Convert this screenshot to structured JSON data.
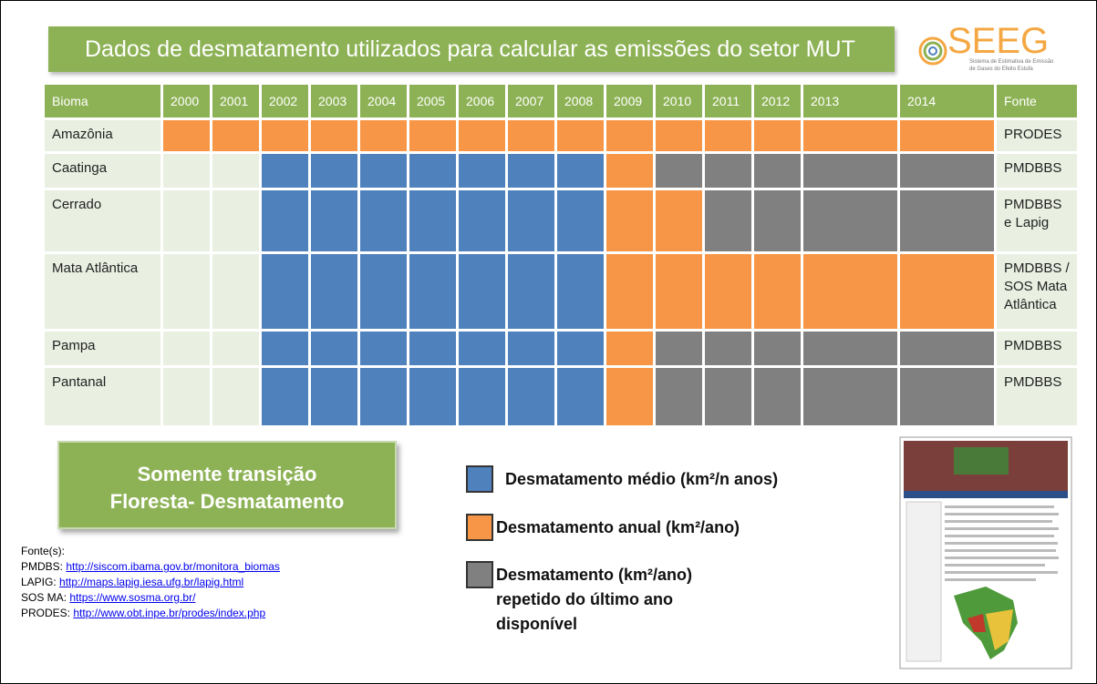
{
  "header": {
    "title": "Dados de desmatamento utilizados para calcular as emissões do setor MUT",
    "logo": "SEEG",
    "logo_subtitle": [
      "Sistema de Estimativa de Emissão",
      "de Gases do Efeito Estufa"
    ]
  },
  "table": {
    "header_color": "#8db255",
    "empty_color": "#e9efe1",
    "columns": [
      "Bioma",
      "2000",
      "2001",
      "2002",
      "2003",
      "2004",
      "2005",
      "2006",
      "2007",
      "2008",
      "2009",
      "2010",
      "2011",
      "2012",
      "2013",
      "2014",
      "Fonte"
    ],
    "rows": [
      {
        "bioma": "Amazônia",
        "cells": [
          1,
          1,
          1,
          1,
          1,
          1,
          1,
          1,
          1,
          1,
          1,
          1,
          1,
          1,
          1
        ],
        "fonte": "PRODES"
      },
      {
        "bioma": "Caatinga",
        "cells": [
          null,
          null,
          0,
          0,
          0,
          0,
          0,
          0,
          0,
          1,
          2,
          2,
          2,
          2,
          2
        ],
        "fonte": "PMDBBS"
      },
      {
        "bioma": "Cerrado",
        "cells": [
          null,
          null,
          0,
          0,
          0,
          0,
          0,
          0,
          0,
          1,
          1,
          2,
          2,
          2,
          2
        ],
        "fonte": "PMDBBS e Lapig"
      },
      {
        "bioma": "Mata Atlântica",
        "cells": [
          null,
          null,
          0,
          0,
          0,
          0,
          0,
          0,
          0,
          1,
          1,
          1,
          1,
          1,
          1
        ],
        "fonte": "PMDBBS / SOS Mata Atlântica"
      },
      {
        "bioma": "Pampa",
        "cells": [
          null,
          null,
          0,
          0,
          0,
          0,
          0,
          0,
          0,
          1,
          2,
          2,
          2,
          2,
          2
        ],
        "fonte": "PMDBBS"
      },
      {
        "bioma": "Pantanal",
        "cells": [
          null,
          null,
          0,
          0,
          0,
          0,
          0,
          0,
          0,
          1,
          2,
          2,
          2,
          2,
          2
        ],
        "fonte": "PMDBBS"
      }
    ]
  },
  "legend": [
    {
      "label": [
        "Desmatamento médio (km²/n anos)"
      ],
      "color": "#4f81bd"
    },
    {
      "label": [
        "Desmatamento anual (km²/ano)"
      ],
      "color": "#f79646"
    },
    {
      "label": [
        "Desmatamento (km²/ano)",
        "repetido do último ano",
        "disponível"
      ],
      "color": "#808080"
    }
  ],
  "note": {
    "lines": [
      "Somente transição",
      "Floresta- Desmatamento"
    ]
  },
  "sources": {
    "title": "Fonte(s):",
    "items": [
      {
        "label": "PMDBS:",
        "url": "http://siscom.ibama.gov.br/monitora_biomas"
      },
      {
        "label": "LAPIG:",
        "url": "http://maps.lapig.iesa.ufg.br/lapig.html"
      },
      {
        "label": "SOS MA:",
        "url": "https://www.sosma.org.br/"
      },
      {
        "label": "PRODES:",
        "url": "http://www.obt.inpe.br/prodes/index.php"
      }
    ]
  }
}
